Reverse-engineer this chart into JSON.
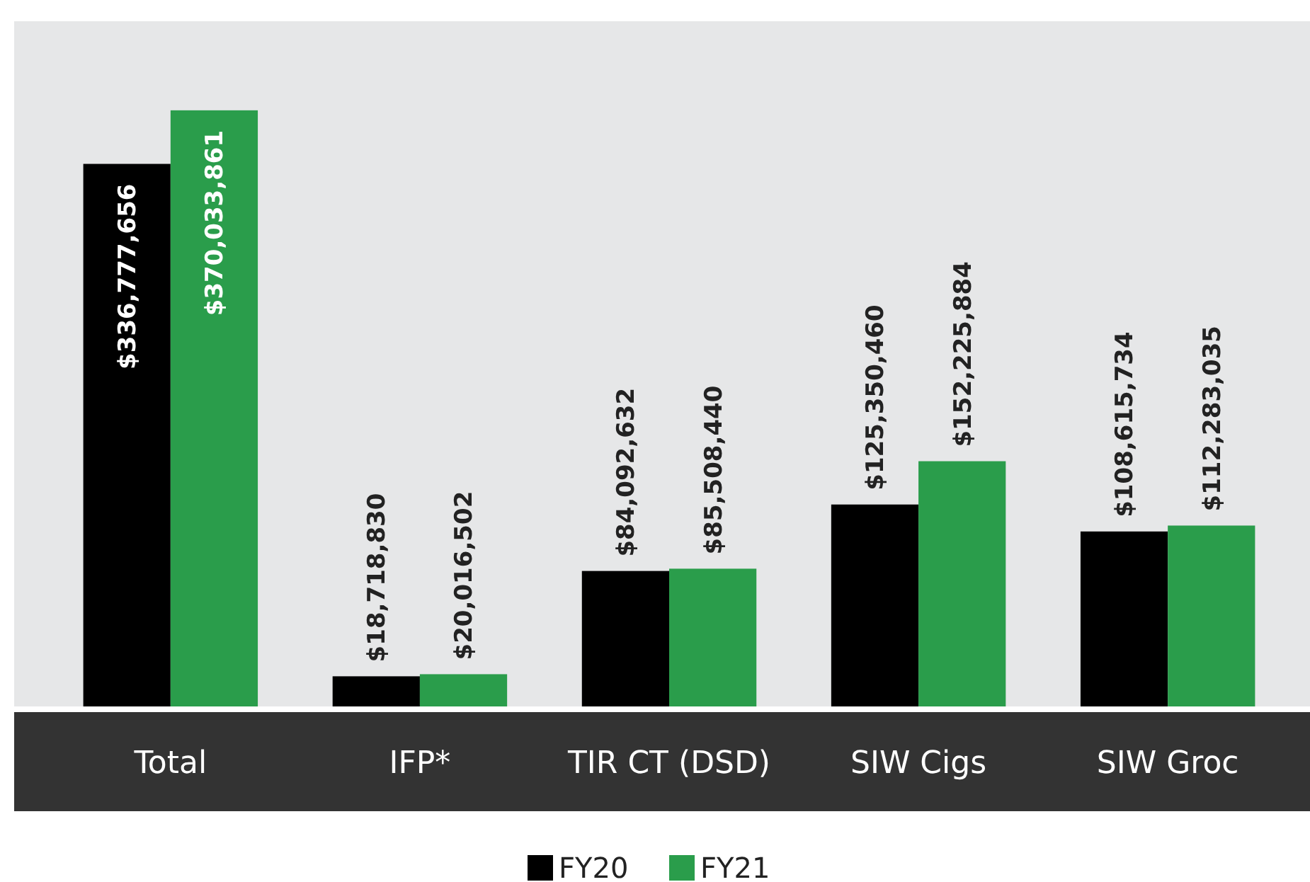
{
  "chart_data": {
    "type": "bar",
    "categories": [
      "Total",
      "IFP*",
      "TIR CT (DSD)",
      "SIW Cigs",
      "SIW Groc"
    ],
    "series": [
      {
        "name": "FY20",
        "color": "#000000",
        "values": [
          336777656,
          18718830,
          84092632,
          125350460,
          108615734
        ],
        "value_labels": [
          "$336,777,656",
          "$18,718,830",
          "$84,092,632",
          "$125,350,460",
          "$108,615,734"
        ]
      },
      {
        "name": "FY21",
        "color": "#2a9d4b",
        "values": [
          370033861,
          20016502,
          85508440,
          152225884,
          112283035
        ],
        "value_labels": [
          "$370,033,861",
          "$20,016,502",
          "$85,508,440",
          "$152,225,884",
          "$112,283,035"
        ]
      }
    ],
    "legend": "bottom"
  }
}
